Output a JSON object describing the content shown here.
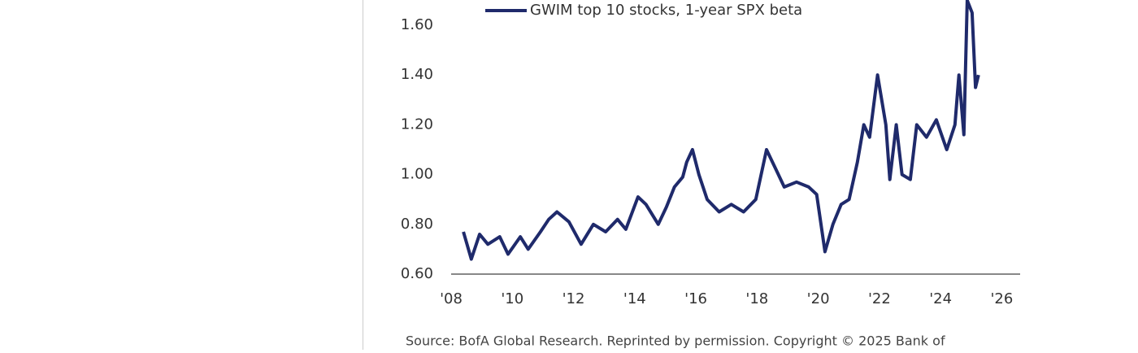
{
  "chart_data": {
    "type": "line",
    "series": [
      {
        "name": "GWIM top 10 stocks, 1-year SPX beta",
        "color": "#1f2a6b",
        "x": [
          2008.4,
          2008.66,
          2008.93,
          2009.2,
          2009.59,
          2009.86,
          2010.26,
          2010.52,
          2010.92,
          2011.19,
          2011.46,
          2011.85,
          2012.25,
          2012.65,
          2013.05,
          2013.44,
          2013.71,
          2014.11,
          2014.37,
          2014.77,
          2015.04,
          2015.3,
          2015.57,
          2015.7,
          2015.89,
          2016.1,
          2016.37,
          2016.76,
          2017.16,
          2017.56,
          2017.96,
          2018.31,
          2018.62,
          2018.89,
          2019.29,
          2019.69,
          2019.95,
          2020.22,
          2020.48,
          2020.75,
          2021.01,
          2021.28,
          2021.49,
          2021.68,
          2021.94,
          2022.21,
          2022.34,
          2022.55,
          2022.74,
          2023.01,
          2023.22,
          2023.54,
          2023.86,
          2024.2,
          2024.47,
          2024.6,
          2024.76,
          2024.87,
          2025.03,
          2025.14,
          2025.24
        ],
        "values": [
          0.77,
          0.66,
          0.76,
          0.72,
          0.75,
          0.68,
          0.75,
          0.7,
          0.77,
          0.82,
          0.85,
          0.81,
          0.72,
          0.8,
          0.77,
          0.82,
          0.78,
          0.91,
          0.88,
          0.8,
          0.87,
          0.95,
          0.99,
          1.05,
          1.1,
          1.0,
          0.9,
          0.85,
          0.88,
          0.85,
          0.9,
          1.1,
          1.02,
          0.95,
          0.97,
          0.95,
          0.92,
          0.69,
          0.8,
          0.88,
          0.9,
          1.05,
          1.2,
          1.15,
          1.4,
          1.2,
          0.98,
          1.2,
          1.0,
          0.98,
          1.2,
          1.15,
          1.22,
          1.1,
          1.2,
          1.4,
          1.16,
          1.7,
          1.65,
          1.35,
          1.4
        ]
      }
    ],
    "xlim": [
      2008,
      2026.6
    ],
    "xticks": [
      {
        "value": 2008,
        "label": "'08"
      },
      {
        "value": 2010,
        "label": "'10"
      },
      {
        "value": 2012,
        "label": "'12"
      },
      {
        "value": 2014,
        "label": "'14"
      },
      {
        "value": 2016,
        "label": "'16"
      },
      {
        "value": 2018,
        "label": "'18"
      },
      {
        "value": 2020,
        "label": "'20"
      },
      {
        "value": 2022,
        "label": "'22"
      },
      {
        "value": 2024,
        "label": "'24"
      },
      {
        "value": 2026,
        "label": "'26"
      }
    ],
    "ylim": [
      0.6,
      1.7
    ],
    "yticks": [
      {
        "value": 0.6,
        "label": "0.60"
      },
      {
        "value": 0.8,
        "label": "0.80"
      },
      {
        "value": 1.0,
        "label": "1.00"
      },
      {
        "value": 1.2,
        "label": "1.20"
      },
      {
        "value": 1.4,
        "label": "1.40"
      },
      {
        "value": 1.6,
        "label": "1.60"
      }
    ],
    "grid": false,
    "source": "Source: BofA Global Research. Reprinted by permission. Copyright © 2025 Bank of"
  }
}
